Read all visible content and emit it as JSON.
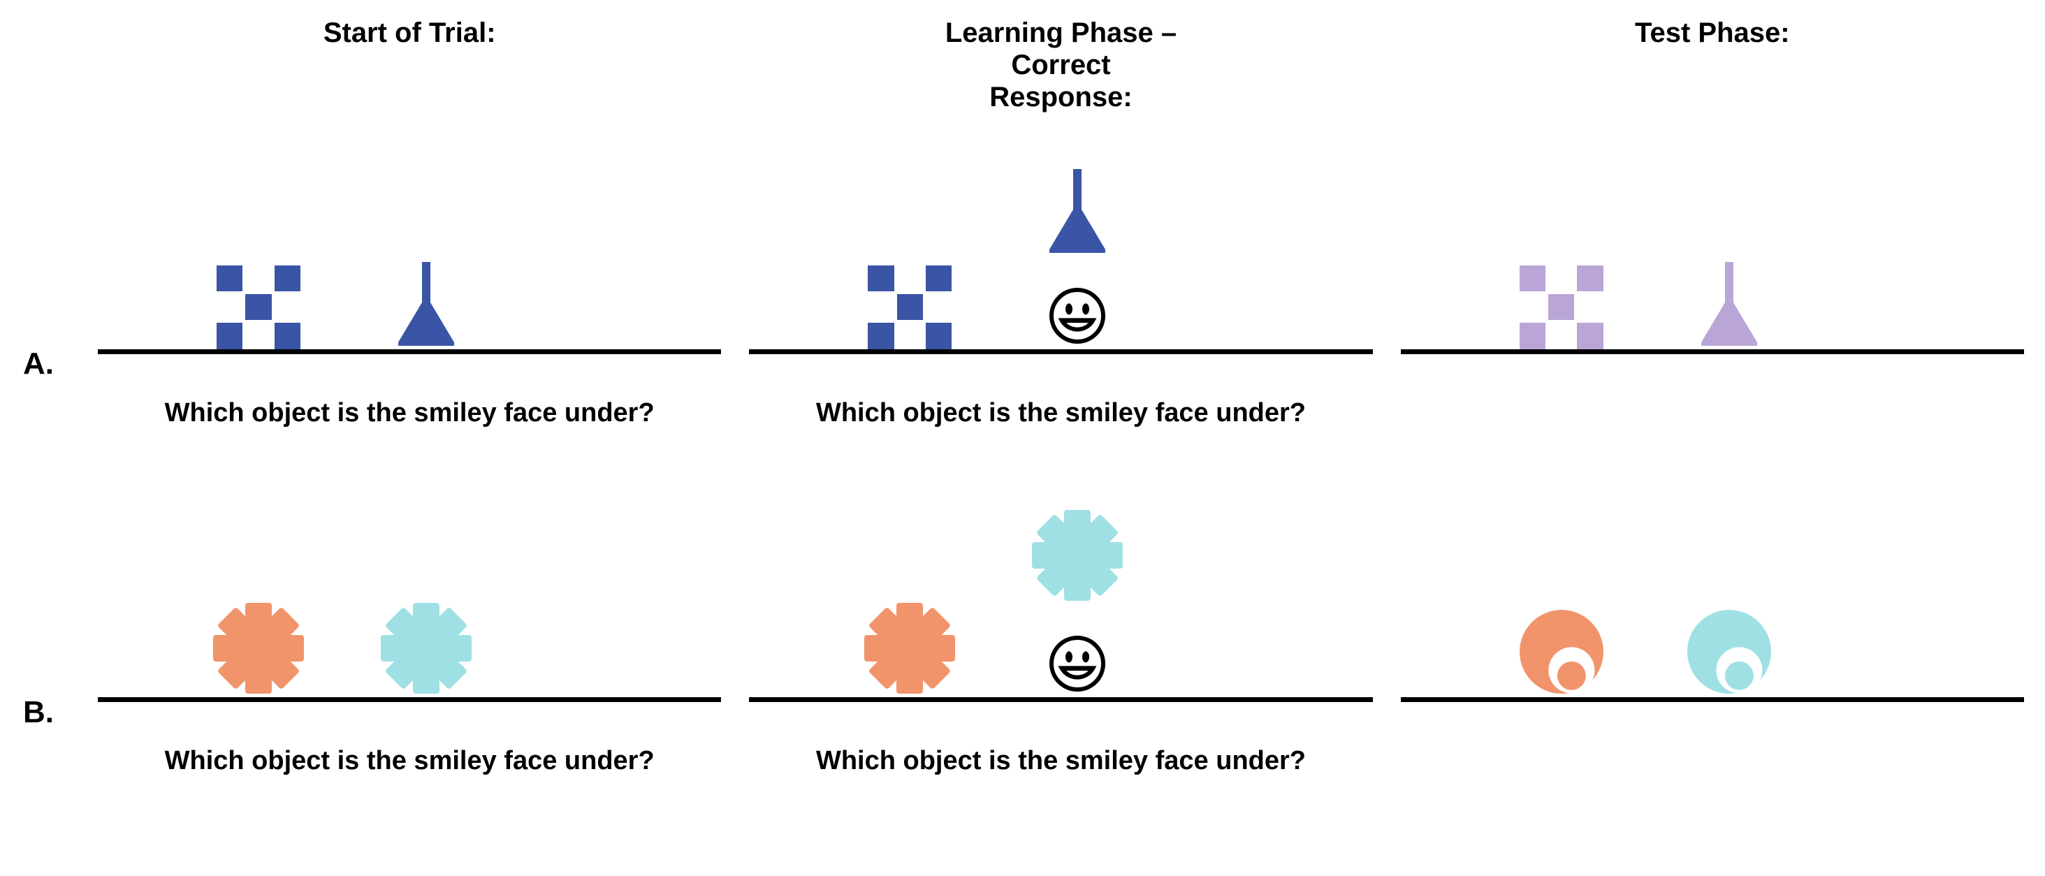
{
  "headers": {
    "col1": "Start of Trial:",
    "col2": "Learning Phase –\nCorrect\nResponse:",
    "col3": "Test Phase:"
  },
  "rowLabels": {
    "A": "A.",
    "B": "B."
  },
  "question": "Which object is the smiley face under?",
  "colors": {
    "blue": "#3a55a5",
    "purple": "#b9a6d6",
    "orange": "#f2946b",
    "cyan": "#9fe0e4",
    "black": "#000000",
    "white": "#ffffff"
  },
  "style": {
    "lineThickness": 7,
    "headerFontSize": 40,
    "questionFontSize": 38,
    "rowLabelFontSize": 44,
    "stageHeight": 310,
    "objLeftX": 230,
    "objRightX": 470,
    "liftedBottom": 180,
    "smileyStroke": 6
  },
  "layout": {
    "rows": [
      "A",
      "B"
    ],
    "cols": [
      "start",
      "learning",
      "test"
    ]
  },
  "shapes": {
    "checker": {
      "type": "checker3x3",
      "size": 120,
      "gap": 4
    },
    "funnel": {
      "type": "funnel-pin",
      "w": 80,
      "h": 120
    },
    "burst": {
      "type": "burst8",
      "size": 130,
      "spokeW": 36
    },
    "crescent": {
      "type": "crescent",
      "size": 120,
      "innerRatio": 0.55,
      "innerOffsetX": 0.12,
      "innerOffsetY": 0.22
    }
  },
  "panels": {
    "A": {
      "start": {
        "left": {
          "shape": "checker",
          "color": "blue"
        },
        "right": {
          "shape": "funnel",
          "color": "blue"
        },
        "question": true
      },
      "learning": {
        "left": {
          "shape": "checker",
          "color": "blue"
        },
        "right": {
          "shape": "funnel",
          "color": "blue",
          "lifted": true
        },
        "smiley": "right",
        "question": true
      },
      "test": {
        "left": {
          "shape": "checker",
          "color": "purple"
        },
        "right": {
          "shape": "funnel",
          "color": "purple"
        },
        "question": false
      }
    },
    "B": {
      "start": {
        "left": {
          "shape": "burst",
          "color": "orange"
        },
        "right": {
          "shape": "burst",
          "color": "cyan"
        },
        "question": true
      },
      "learning": {
        "left": {
          "shape": "burst",
          "color": "orange"
        },
        "right": {
          "shape": "burst",
          "color": "cyan",
          "lifted": true
        },
        "smiley": "right",
        "question": true
      },
      "test": {
        "left": {
          "shape": "crescent",
          "color": "orange"
        },
        "right": {
          "shape": "crescent",
          "color": "cyan"
        },
        "question": false
      }
    }
  }
}
